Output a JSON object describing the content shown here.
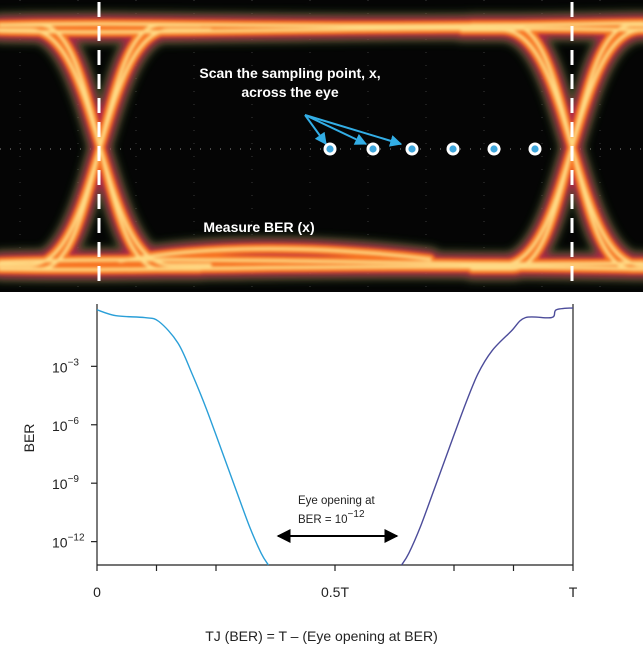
{
  "eye_diagram": {
    "scan_text_line1": "Scan the sampling point, x,",
    "scan_text_line2": "across the eye",
    "measure_text": "Measure BER (x)",
    "sampling_point_count": 6,
    "colors": {
      "background": "#050505",
      "trace_hot": "#ffe08a",
      "trace_mid": "#ff7a1a",
      "trace_cool": "#c8234f",
      "trace_edge": "#4c8f3a",
      "marker_fill": "#3ea6dc",
      "arrow": "#33aee6"
    }
  },
  "ber_chart": {
    "ylabel": "BER",
    "y_ticks": [
      {
        "base": "10",
        "exp": "−3",
        "log": -3
      },
      {
        "base": "10",
        "exp": "−6",
        "log": -6
      },
      {
        "base": "10",
        "exp": "−9",
        "log": -9
      },
      {
        "base": "10",
        "exp": "−12",
        "log": -12
      }
    ],
    "x_ticks": [
      "0",
      "0.5T",
      "T"
    ],
    "annotation_line1": "Eye opening at",
    "annotation_base": "BER = 10",
    "annotation_exp": "−12",
    "footer": "TJ (BER) = T – (Eye opening at BER)",
    "left_curve_color": "#2a9fd8",
    "right_curve_color": "#4c4c9a"
  },
  "chart_data": {
    "type": "line",
    "title": "",
    "xlabel": "TJ (BER) = T – (Eye opening at BER)",
    "ylabel": "BER",
    "x_unit": "UI (T)",
    "y_scale": "log",
    "xlim": [
      0,
      1
    ],
    "ylim_log10": [
      -13.2,
      0.2
    ],
    "series": [
      {
        "x": [
          0.0,
          0.04,
          0.1,
          0.13,
          0.17,
          0.2,
          0.23,
          0.26,
          0.29,
          0.32,
          0.345,
          0.36
        ],
        "log10_ber": [
          -0.1,
          -0.4,
          -0.5,
          -0.7,
          -1.8,
          -3.4,
          -5.2,
          -7.2,
          -9.2,
          -11.2,
          -12.6,
          -13.2
        ]
      },
      {
        "x": [
          0.64,
          0.655,
          0.68,
          0.71,
          0.74,
          0.77,
          0.8,
          0.83,
          0.87,
          0.9,
          0.955,
          0.965,
          1.0
        ],
        "log10_ber": [
          -13.2,
          -12.6,
          -11.2,
          -9.2,
          -7.2,
          -5.2,
          -3.4,
          -2.2,
          -1.2,
          -0.5,
          -0.5,
          -0.1,
          0.0
        ]
      }
    ],
    "annotations": [
      "Eye opening at BER = 10^−12"
    ]
  }
}
